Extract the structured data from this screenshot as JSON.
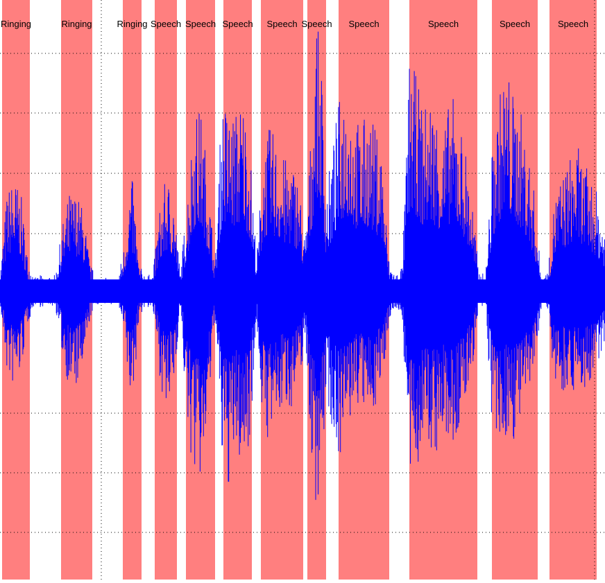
{
  "chart_data": {
    "type": "area",
    "title": "",
    "xlabel": "",
    "ylabel": "",
    "xlim": [
      0,
      872
    ],
    "ylim": [
      -1,
      1
    ],
    "grid": true,
    "colors": {
      "segment_fill": "#ff7f7f",
      "waveform": "#0000ff",
      "grid": "#000000",
      "background": "#ffffff"
    },
    "segments": [
      {
        "label": "Ringing",
        "start": 3,
        "end": 43
      },
      {
        "label": "Ringing",
        "start": 88,
        "end": 133
      },
      {
        "label": "Ringing",
        "start": 177,
        "end": 204
      },
      {
        "label": "Speech",
        "start": 223,
        "end": 255
      },
      {
        "label": "Speech",
        "start": 268,
        "end": 310
      },
      {
        "label": "Speech",
        "start": 322,
        "end": 363
      },
      {
        "label": "Speech",
        "start": 376,
        "end": 437
      },
      {
        "label": "Speech",
        "start": 443,
        "end": 470
      },
      {
        "label": "Speech",
        "start": 488,
        "end": 561
      },
      {
        "label": "Speech",
        "start": 590,
        "end": 688
      },
      {
        "label": "Speech",
        "start": 709,
        "end": 775
      },
      {
        "label": "Speech",
        "start": 792,
        "end": 860
      }
    ],
    "waveform_envelope": {
      "x": [
        0,
        10,
        20,
        30,
        40,
        50,
        60,
        70,
        80,
        90,
        100,
        110,
        120,
        130,
        140,
        150,
        160,
        170,
        180,
        185,
        190,
        195,
        200,
        210,
        220,
        230,
        240,
        250,
        260,
        270,
        280,
        290,
        300,
        310,
        320,
        330,
        340,
        350,
        360,
        370,
        380,
        390,
        400,
        410,
        420,
        430,
        440,
        450,
        455,
        460,
        465,
        470,
        480,
        490,
        500,
        510,
        520,
        530,
        540,
        550,
        560,
        570,
        580,
        590,
        600,
        610,
        620,
        630,
        640,
        650,
        660,
        670,
        680,
        690,
        700,
        710,
        720,
        730,
        740,
        750,
        760,
        770,
        780,
        790,
        800,
        810,
        820,
        830,
        840,
        850,
        860,
        872
      ],
      "upper": [
        0.05,
        0.3,
        0.35,
        0.3,
        0.1,
        0.04,
        0.05,
        0.04,
        0.05,
        0.2,
        0.3,
        0.3,
        0.25,
        0.08,
        0.04,
        0.04,
        0.04,
        0.04,
        0.15,
        0.3,
        0.35,
        0.25,
        0.08,
        0.05,
        0.05,
        0.25,
        0.35,
        0.3,
        0.05,
        0.3,
        0.55,
        0.55,
        0.35,
        0.08,
        0.6,
        0.55,
        0.55,
        0.6,
        0.45,
        0.1,
        0.45,
        0.5,
        0.45,
        0.4,
        0.4,
        0.35,
        0.15,
        0.55,
        0.85,
        0.75,
        0.65,
        0.3,
        0.45,
        0.6,
        0.65,
        0.55,
        0.5,
        0.55,
        0.5,
        0.45,
        0.1,
        0.05,
        0.08,
        0.7,
        0.65,
        0.55,
        0.6,
        0.55,
        0.5,
        0.6,
        0.55,
        0.45,
        0.3,
        0.06,
        0.05,
        0.45,
        0.6,
        0.7,
        0.6,
        0.55,
        0.45,
        0.3,
        0.05,
        0.06,
        0.3,
        0.35,
        0.4,
        0.45,
        0.4,
        0.35,
        0.3,
        0.2
      ],
      "lower": [
        -0.05,
        -0.25,
        -0.3,
        -0.25,
        -0.1,
        -0.04,
        -0.05,
        -0.04,
        -0.05,
        -0.2,
        -0.3,
        -0.3,
        -0.25,
        -0.08,
        -0.04,
        -0.04,
        -0.04,
        -0.04,
        -0.15,
        -0.3,
        -0.35,
        -0.25,
        -0.08,
        -0.05,
        -0.05,
        -0.25,
        -0.4,
        -0.3,
        -0.05,
        -0.45,
        -0.55,
        -0.6,
        -0.4,
        -0.08,
        -0.55,
        -0.6,
        -0.5,
        -0.55,
        -0.45,
        -0.1,
        -0.45,
        -0.45,
        -0.4,
        -0.35,
        -0.35,
        -0.3,
        -0.15,
        -0.55,
        -0.65,
        -0.6,
        -0.55,
        -0.3,
        -0.45,
        -0.5,
        -0.45,
        -0.35,
        -0.35,
        -0.4,
        -0.35,
        -0.3,
        -0.1,
        -0.05,
        -0.08,
        -0.6,
        -0.55,
        -0.45,
        -0.5,
        -0.5,
        -0.45,
        -0.5,
        -0.45,
        -0.35,
        -0.25,
        -0.06,
        -0.05,
        -0.45,
        -0.5,
        -0.45,
        -0.45,
        -0.4,
        -0.35,
        -0.25,
        -0.05,
        -0.06,
        -0.3,
        -0.3,
        -0.3,
        -0.3,
        -0.3,
        -0.3,
        -0.25,
        -0.15
      ]
    }
  }
}
